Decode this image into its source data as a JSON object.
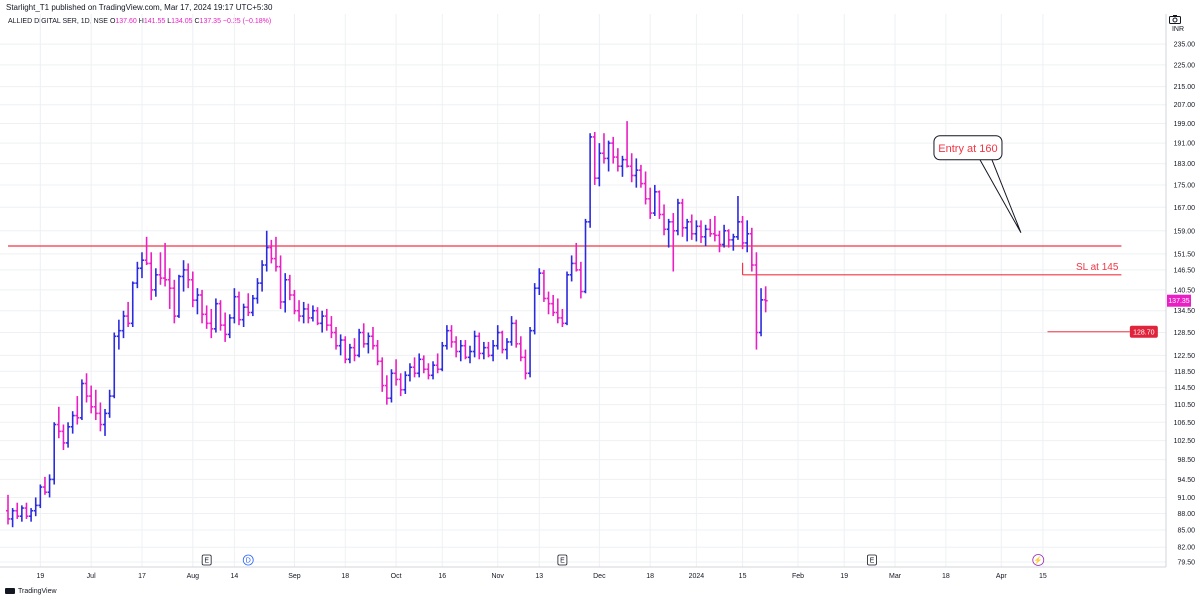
{
  "header": {
    "published": "Starlight_T1 published on TradingView.com, Mar 17, 2024 19:17 UTC+5:30",
    "symbol": "ALLIED DIGITAL SER, 1D, NSE",
    "o_label": "O",
    "o_value": "137.60",
    "h_label": "H",
    "h_value": "141.55",
    "l_label": "L",
    "l_value": "134.05",
    "c_label": "C",
    "c_value": "137.35",
    "change": "−0.25 (−0.18%)"
  },
  "footer": {
    "brand": "TradingView"
  },
  "colors": {
    "up": "#2a2adf",
    "down": "#e91ec5",
    "line": "#f23645",
    "last": "#e91ec5",
    "grid": "#eef0f3"
  },
  "chart_data": {
    "type": "ohlc",
    "currency": "INR",
    "y_scale": "log",
    "ylim": [
      79.5,
      239.0
    ],
    "y_ticks": [
      235.0,
      225.0,
      215.0,
      207.0,
      199.0,
      191.0,
      183.0,
      175.0,
      167.0,
      159.0,
      151.5,
      146.5,
      140.5,
      134.5,
      128.5,
      122.5,
      118.5,
      114.5,
      110.5,
      106.5,
      102.5,
      98.5,
      94.5,
      91.0,
      88.0,
      85.0,
      82.0,
      79.5
    ],
    "x_ticks": [
      "19",
      "Jul",
      "17",
      "Aug",
      "14",
      "Sep",
      "18",
      "Oct",
      "16",
      "Nov",
      "13",
      "Dec",
      "18",
      "2024",
      "15",
      "Feb",
      "19",
      "Mar",
      "18",
      "Apr",
      "15"
    ],
    "x_tick_bars": [
      7,
      18,
      29,
      40,
      49,
      62,
      73,
      84,
      94,
      106,
      115,
      128,
      139,
      149,
      159,
      171,
      181,
      192,
      203,
      215,
      224
    ],
    "bars": [
      [
        88.5,
        91.5,
        86.0,
        87.0
      ],
      [
        87.0,
        89.0,
        85.5,
        88.5
      ],
      [
        88.5,
        90.0,
        87.0,
        87.5
      ],
      [
        87.5,
        89.5,
        86.5,
        89.0
      ],
      [
        89.0,
        90.0,
        87.0,
        87.5
      ],
      [
        87.5,
        89.0,
        86.5,
        88.5
      ],
      [
        88.5,
        91.0,
        87.5,
        89.5
      ],
      [
        89.5,
        93.5,
        89.0,
        93.0
      ],
      [
        93.0,
        95.0,
        91.5,
        92.0
      ],
      [
        92.0,
        95.5,
        91.0,
        94.5
      ],
      [
        94.5,
        106.5,
        93.5,
        106.0
      ],
      [
        106.0,
        110.0,
        103.0,
        104.5
      ],
      [
        104.5,
        106.0,
        100.5,
        102.0
      ],
      [
        102.0,
        106.5,
        101.0,
        105.5
      ],
      [
        105.5,
        109.0,
        104.0,
        108.0
      ],
      [
        108.0,
        112.5,
        106.0,
        107.5
      ],
      [
        107.5,
        116.5,
        107.0,
        115.5
      ],
      [
        115.5,
        118.0,
        111.0,
        112.5
      ],
      [
        112.5,
        115.0,
        108.5,
        110.0
      ],
      [
        110.0,
        114.0,
        107.0,
        108.5
      ],
      [
        108.5,
        111.0,
        104.5,
        106.0
      ],
      [
        106.0,
        109.5,
        103.5,
        108.5
      ],
      [
        108.5,
        114.0,
        107.5,
        112.5
      ],
      [
        112.5,
        128.5,
        112.0,
        127.5
      ],
      [
        127.5,
        132.0,
        124.0,
        129.0
      ],
      [
        129.0,
        134.5,
        127.0,
        133.0
      ],
      [
        133.0,
        137.0,
        130.0,
        131.0
      ],
      [
        131.0,
        143.0,
        130.0,
        142.5
      ],
      [
        142.5,
        149.0,
        141.0,
        147.0
      ],
      [
        147.0,
        152.0,
        144.0,
        149.5
      ],
      [
        149.5,
        157.0,
        148.0,
        148.5
      ],
      [
        148.5,
        152.0,
        137.5,
        140.5
      ],
      [
        140.5,
        147.0,
        138.5,
        145.0
      ],
      [
        145.0,
        152.0,
        142.0,
        144.0
      ],
      [
        144.0,
        155.0,
        141.5,
        143.5
      ],
      [
        143.5,
        147.0,
        135.0,
        141.0
      ],
      [
        141.0,
        143.5,
        131.0,
        133.0
      ],
      [
        133.0,
        145.0,
        132.5,
        144.5
      ],
      [
        144.5,
        149.5,
        140.0,
        146.5
      ],
      [
        146.5,
        148.5,
        141.0,
        143.5
      ],
      [
        143.5,
        146.0,
        135.5,
        137.5
      ],
      [
        137.5,
        141.0,
        133.5,
        139.0
      ],
      [
        139.0,
        140.5,
        131.0,
        133.5
      ],
      [
        133.5,
        136.0,
        129.5,
        131.0
      ],
      [
        131.0,
        135.0,
        127.0,
        129.5
      ],
      [
        129.5,
        138.0,
        128.5,
        136.5
      ],
      [
        136.5,
        137.5,
        129.0,
        130.5
      ],
      [
        130.5,
        134.0,
        126.0,
        128.0
      ],
      [
        128.0,
        133.5,
        127.0,
        132.5
      ],
      [
        132.5,
        141.0,
        131.0,
        138.5
      ],
      [
        138.5,
        140.0,
        130.5,
        132.0
      ],
      [
        132.0,
        136.5,
        130.0,
        135.5
      ],
      [
        135.5,
        139.5,
        133.0,
        134.0
      ],
      [
        134.0,
        139.0,
        133.0,
        138.0
      ],
      [
        138.0,
        144.0,
        136.5,
        142.5
      ],
      [
        142.5,
        149.5,
        140.0,
        148.0
      ],
      [
        148.0,
        159.0,
        146.0,
        153.5
      ],
      [
        153.5,
        156.0,
        148.5,
        150.0
      ],
      [
        150.0,
        157.0,
        146.0,
        147.5
      ],
      [
        147.5,
        151.0,
        135.0,
        137.0
      ],
      [
        137.0,
        145.5,
        134.0,
        143.5
      ],
      [
        143.5,
        145.0,
        137.5,
        139.0
      ],
      [
        139.0,
        140.5,
        133.5,
        134.5
      ],
      [
        134.5,
        137.5,
        131.5,
        133.0
      ],
      [
        133.0,
        137.0,
        131.0,
        135.0
      ],
      [
        135.0,
        136.5,
        131.0,
        132.5
      ],
      [
        132.5,
        136.0,
        131.5,
        134.5
      ],
      [
        134.5,
        135.5,
        130.5,
        131.0
      ],
      [
        131.0,
        134.5,
        128.5,
        133.0
      ],
      [
        133.0,
        135.0,
        129.0,
        130.5
      ],
      [
        130.5,
        133.0,
        127.0,
        128.5
      ],
      [
        128.5,
        130.0,
        124.0,
        125.0
      ],
      [
        125.0,
        128.0,
        122.5,
        126.5
      ],
      [
        126.5,
        127.5,
        120.5,
        121.5
      ],
      [
        121.5,
        125.5,
        120.5,
        124.5
      ],
      [
        124.5,
        127.0,
        121.0,
        122.5
      ],
      [
        122.5,
        129.5,
        122.0,
        128.5
      ],
      [
        128.5,
        131.0,
        124.5,
        125.5
      ],
      [
        125.5,
        128.5,
        123.0,
        127.5
      ],
      [
        127.5,
        130.0,
        124.0,
        125.0
      ],
      [
        125.0,
        126.5,
        120.0,
        121.0
      ],
      [
        121.0,
        122.0,
        113.5,
        115.0
      ],
      [
        115.0,
        117.5,
        110.5,
        112.0
      ],
      [
        112.0,
        119.0,
        111.0,
        118.0
      ],
      [
        118.0,
        121.5,
        115.0,
        116.5
      ],
      [
        116.5,
        118.0,
        112.5,
        114.0
      ],
      [
        114.0,
        118.5,
        113.0,
        117.5
      ],
      [
        117.5,
        120.5,
        116.0,
        119.5
      ],
      [
        119.5,
        122.0,
        117.0,
        118.0
      ],
      [
        118.0,
        123.0,
        117.0,
        121.5
      ],
      [
        121.5,
        122.5,
        118.0,
        119.0
      ],
      [
        119.0,
        120.5,
        116.5,
        117.5
      ],
      [
        117.5,
        121.0,
        116.5,
        120.0
      ],
      [
        120.0,
        123.0,
        118.0,
        119.0
      ],
      [
        119.0,
        126.0,
        118.5,
        125.0
      ],
      [
        125.0,
        130.5,
        124.0,
        129.0
      ],
      [
        129.0,
        130.5,
        124.5,
        126.0
      ],
      [
        126.0,
        127.5,
        122.0,
        123.5
      ],
      [
        123.5,
        126.5,
        121.0,
        125.0
      ],
      [
        125.0,
        126.5,
        121.5,
        122.0
      ],
      [
        122.0,
        125.0,
        120.5,
        123.5
      ],
      [
        123.5,
        129.0,
        122.0,
        127.5
      ],
      [
        127.5,
        128.5,
        121.5,
        123.0
      ],
      [
        123.0,
        126.0,
        121.5,
        124.5
      ],
      [
        124.5,
        126.0,
        122.0,
        122.5
      ],
      [
        122.5,
        126.5,
        121.0,
        125.0
      ],
      [
        125.0,
        130.5,
        124.0,
        128.5
      ],
      [
        128.5,
        129.0,
        123.0,
        124.0
      ],
      [
        124.0,
        127.0,
        121.5,
        126.0
      ],
      [
        126.0,
        133.0,
        125.0,
        131.0
      ],
      [
        131.0,
        132.0,
        124.5,
        125.5
      ],
      [
        125.5,
        127.5,
        121.0,
        122.0
      ],
      [
        122.0,
        124.0,
        116.5,
        118.0
      ],
      [
        118.0,
        130.0,
        117.0,
        129.0
      ],
      [
        129.0,
        142.5,
        128.0,
        141.0
      ],
      [
        141.0,
        147.0,
        139.0,
        145.5
      ],
      [
        145.5,
        146.5,
        137.0,
        138.0
      ],
      [
        138.0,
        140.0,
        133.5,
        136.5
      ],
      [
        136.5,
        139.0,
        133.0,
        134.0
      ],
      [
        134.0,
        138.0,
        131.0,
        132.5
      ],
      [
        132.5,
        135.0,
        130.0,
        131.0
      ],
      [
        131.0,
        146.0,
        130.5,
        145.0
      ],
      [
        145.0,
        151.0,
        143.0,
        148.5
      ],
      [
        148.5,
        155.0,
        146.0,
        146.5
      ],
      [
        146.5,
        149.0,
        138.0,
        140.0
      ],
      [
        140.0,
        163.0,
        139.5,
        162.0
      ],
      [
        162.0,
        195.0,
        160.0,
        193.5
      ],
      [
        193.5,
        195.5,
        175.0,
        177.5
      ],
      [
        177.5,
        191.0,
        174.5,
        187.0
      ],
      [
        187.0,
        195.0,
        183.0,
        185.0
      ],
      [
        185.0,
        192.0,
        180.0,
        191.0
      ],
      [
        191.0,
        193.5,
        183.0,
        185.5
      ],
      [
        185.5,
        189.0,
        180.0,
        182.0
      ],
      [
        182.0,
        186.0,
        178.0,
        184.5
      ],
      [
        184.5,
        200.0,
        181.5,
        182.0
      ],
      [
        182.0,
        187.0,
        176.0,
        178.5
      ],
      [
        178.5,
        185.0,
        174.0,
        180.5
      ],
      [
        180.5,
        182.5,
        174.0,
        175.5
      ],
      [
        175.5,
        180.0,
        168.0,
        170.0
      ],
      [
        170.0,
        174.0,
        163.0,
        165.0
      ],
      [
        165.0,
        175.0,
        164.0,
        172.5
      ],
      [
        172.5,
        173.0,
        163.0,
        164.5
      ],
      [
        164.5,
        168.0,
        157.5,
        159.5
      ],
      [
        159.5,
        163.0,
        153.5,
        162.0
      ],
      [
        162.0,
        165.0,
        146.0,
        159.0
      ],
      [
        159.0,
        170.0,
        157.5,
        168.5
      ],
      [
        168.5,
        170.0,
        157.0,
        160.0
      ],
      [
        160.0,
        163.0,
        155.5,
        162.0
      ],
      [
        162.0,
        164.5,
        156.0,
        158.0
      ],
      [
        158.0,
        162.5,
        155.5,
        160.5
      ],
      [
        160.5,
        162.5,
        155.0,
        157.0
      ],
      [
        157.0,
        161.0,
        154.0,
        159.5
      ],
      [
        159.5,
        163.0,
        157.0,
        158.0
      ],
      [
        158.0,
        164.0,
        155.5,
        157.5
      ],
      [
        157.5,
        159.0,
        152.0,
        154.5
      ],
      [
        154.5,
        161.0,
        153.5,
        159.0
      ],
      [
        159.0,
        159.5,
        153.5,
        156.0
      ],
      [
        156.0,
        158.0,
        152.5,
        157.0
      ],
      [
        157.0,
        171.0,
        156.0,
        162.0
      ],
      [
        162.0,
        164.0,
        153.0,
        155.0
      ],
      [
        155.0,
        162.5,
        152.0,
        158.0
      ],
      [
        158.0,
        160.0,
        146.0,
        148.0
      ],
      [
        148.0,
        152.0,
        124.0,
        128.5
      ],
      [
        128.5,
        141.0,
        127.5,
        137.6
      ],
      [
        137.6,
        141.55,
        134.05,
        137.35
      ]
    ],
    "annotations": [
      {
        "kind": "hline",
        "label": "",
        "value": 154.0,
        "from_bar": 0,
        "to_bar": 241
      },
      {
        "kind": "hline",
        "label": "SL at 145",
        "value": 145.0,
        "from_bar": 159,
        "to_bar": 241
      },
      {
        "kind": "callout",
        "label": "Entry at 160",
        "value": 160.0,
        "at_bar": 158
      },
      {
        "kind": "price_marker",
        "label": "128.70",
        "value": 128.7,
        "from_bar": 225,
        "to_bar": 232
      }
    ],
    "last_price": "137.35",
    "event_markers": [
      {
        "label": "E",
        "bar": 43
      },
      {
        "label": "D",
        "bar": 52
      },
      {
        "label": "E",
        "bar": 120
      },
      {
        "label": "E",
        "bar": 187
      },
      {
        "label": "⚡",
        "bar": 223
      }
    ]
  }
}
